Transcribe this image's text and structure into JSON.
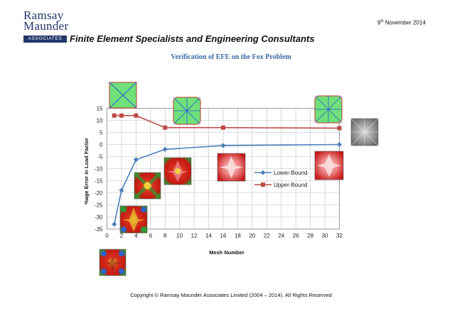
{
  "header": {
    "logo_word_1": "Ramsay",
    "logo_word_2": "Maunder",
    "logo_band": "ASSOCIATES",
    "tagline": "Finite Element Specialists and Engineering Consultants",
    "date_day": "9",
    "date_suffix": "th",
    "date_rest": " November 2014"
  },
  "footer": {
    "copyright": "Copyright © Ramsay Maunder Associates Limited (2004 – 2014).  All Rights Reserved"
  },
  "colors": {
    "lower_bound": "#4a7ebb",
    "upper_bound": "#be4b48",
    "gridline": "#bfbfbf",
    "title": "#3b6aa6"
  },
  "chart_data": {
    "type": "line",
    "title": "Verification of EFE on the Fox Problem",
    "xlabel": "Mesh Number",
    "ylabel": "%age Error in Load Factor",
    "xlim": [
      0,
      32
    ],
    "ylim": [
      -35,
      15
    ],
    "x_ticks": [
      "0",
      "2",
      "4",
      "6",
      "8",
      "10",
      "12",
      "14",
      "16",
      "18",
      "20",
      "22",
      "24",
      "26",
      "28",
      "30",
      "32"
    ],
    "y_ticks": [
      "15",
      "10",
      "5",
      "0",
      "-5",
      "-10",
      "-15",
      "-20",
      "-25",
      "-30",
      "-35"
    ],
    "grid": true,
    "legend_position": "right",
    "series": [
      {
        "name": "Lower-Bound",
        "x": [
          1,
          2,
          4,
          8,
          16,
          32
        ],
        "y": [
          -33,
          -19,
          -6.3,
          -2,
          -0.4,
          0
        ]
      },
      {
        "name": "Upper-Bound",
        "x": [
          1,
          2,
          4,
          8,
          16,
          32
        ],
        "y": [
          12,
          12,
          12,
          7,
          7,
          6.8
        ]
      }
    ]
  }
}
